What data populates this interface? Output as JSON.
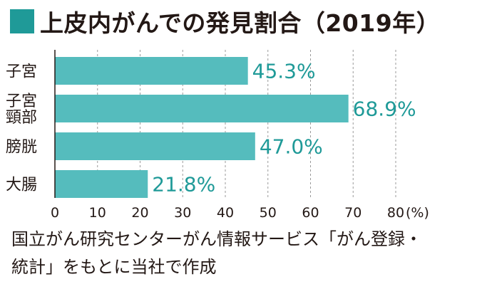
{
  "title": "上皮内がんでの発見割合（2019年）",
  "source": "国立がん研究センターがん情報サービス「がん登録・\n統計」をもとに当社で作成",
  "colors": {
    "accent": "#1f9a98",
    "bar": "#55bcbd",
    "label": "#1f9a98",
    "text": "#231815",
    "grid": "#9a9a9a"
  },
  "chart_data": {
    "type": "bar",
    "orientation": "horizontal",
    "title": "上皮内がんでの発見割合（2019年）",
    "categories": [
      "子宮",
      "子宮\n頸部",
      "膀胱",
      "大腸"
    ],
    "values": [
      45.3,
      68.9,
      47.0,
      21.8
    ],
    "value_labels": [
      "45.3%",
      "68.9%",
      "47.0%",
      "21.8%"
    ],
    "xlim": [
      0,
      80
    ],
    "x_ticks": [
      "0",
      "10",
      "20",
      "30",
      "40",
      "50",
      "60",
      "70",
      "80"
    ],
    "x_unit": "(%)",
    "grid": "vertical dashed",
    "legend": "none"
  }
}
